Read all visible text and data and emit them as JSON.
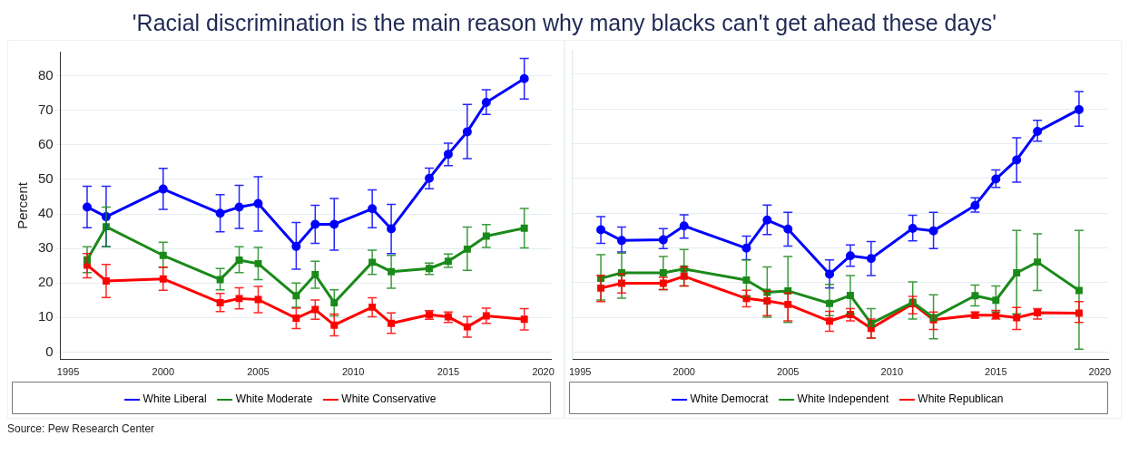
{
  "chart_data": [
    {
      "type": "line",
      "title": "'Racial discrimination is the main reason why many blacks can't get ahead these days'",
      "ylabel": "Percent",
      "xlim": [
        1994.6,
        2020.4
      ],
      "xticks": [
        1995,
        2000,
        2005,
        2010,
        2015,
        2020
      ],
      "ylim": [
        -2.2,
        87
      ],
      "yticks": [
        0,
        10,
        20,
        30,
        40,
        50,
        60,
        70,
        80
      ],
      "grid": "y",
      "legend": "bottom",
      "annotations": [
        "Source: Pew Research Center"
      ],
      "x": [
        1996,
        1997,
        2000,
        2003,
        2004,
        2005,
        2007,
        2008,
        2009,
        2011,
        2012,
        2014,
        2015,
        2016,
        2017,
        2019
      ],
      "series": [
        {
          "name": "White Liberal",
          "color": "#0000ff",
          "marker": "circle",
          "values": [
            42,
            39.2,
            47.2,
            40.2,
            42,
            43,
            30.6,
            37,
            37,
            41.5,
            35.7,
            50.3,
            57.3,
            63.8,
            72.3,
            79.2
          ],
          "errors": [
            [
              36,
              48
            ],
            [
              30.5,
              48
            ],
            [
              41.3,
              53.2
            ],
            [
              34.8,
              45.6
            ],
            [
              35.8,
              48.3
            ],
            [
              35,
              50.8
            ],
            [
              24,
              37.5
            ],
            [
              31.5,
              42.5
            ],
            [
              29.5,
              44.5
            ],
            [
              36,
              47
            ],
            [
              28.5,
              42.8
            ],
            [
              47.3,
              53.3
            ],
            [
              54,
              60.5
            ],
            [
              56,
              71.7
            ],
            [
              68.8,
              76
            ],
            [
              73.3,
              85
            ]
          ]
        },
        {
          "name": "White Moderate",
          "color": "#1a8a1a",
          "marker": "square",
          "values": [
            26.7,
            36.3,
            28,
            21,
            26.6,
            25.6,
            16.3,
            22.4,
            14.3,
            26,
            23.3,
            24.2,
            26.3,
            29.8,
            33.6,
            35.9
          ],
          "errors": [
            [
              23,
              30.5
            ],
            [
              30.5,
              42
            ],
            [
              24.5,
              31.8
            ],
            [
              18,
              24.2
            ],
            [
              23,
              30.5
            ],
            [
              21,
              30.3
            ],
            [
              13,
              20
            ],
            [
              18.5,
              26.3
            ],
            [
              10.5,
              18
            ],
            [
              22.5,
              29.5
            ],
            [
              18.5,
              28
            ],
            [
              22.5,
              25.8
            ],
            [
              24.5,
              28.4
            ],
            [
              23.7,
              36.2
            ],
            [
              30.3,
              36.9
            ],
            [
              30.2,
              41.6
            ]
          ]
        },
        {
          "name": "White Conservative",
          "color": "#ff0000",
          "marker": "square",
          "values": [
            25.2,
            20.6,
            21.2,
            14.3,
            15.5,
            15.2,
            9.8,
            12.3,
            7.8,
            13,
            8.3,
            10.8,
            10.2,
            7.3,
            10.5,
            9.5
          ],
          "errors": [
            [
              21.5,
              28.5
            ],
            [
              15.8,
              25.4
            ],
            [
              17.9,
              24.6
            ],
            [
              11.7,
              17
            ],
            [
              12.5,
              18.6
            ],
            [
              11.4,
              19
            ],
            [
              6.8,
              12.7
            ],
            [
              9.5,
              15.1
            ],
            [
              4.7,
              11
            ],
            [
              10.2,
              15.7
            ],
            [
              5.4,
              11.3
            ],
            [
              9.5,
              12
            ],
            [
              8.6,
              11.6
            ],
            [
              4.3,
              10.3
            ],
            [
              8.3,
              12.7
            ],
            [
              6.4,
              12.6
            ]
          ]
        }
      ]
    },
    {
      "type": "line",
      "xlim": [
        1994.6,
        2020.4
      ],
      "xticks": [
        1995,
        2000,
        2005,
        2010,
        2015,
        2020
      ],
      "ylim": [
        -2.2,
        87
      ],
      "yticks": [
        0,
        10,
        20,
        30,
        40,
        50,
        60,
        70,
        80
      ],
      "grid": "y",
      "legend": "bottom",
      "tick_labels": "x",
      "x": [
        1996,
        1997,
        1999,
        2000,
        2003,
        2004,
        2005,
        2007,
        2008,
        2009,
        2011,
        2012,
        2014,
        2015,
        2016,
        2017,
        2019
      ],
      "series": [
        {
          "name": "White Democrat",
          "color": "#0000ff",
          "marker": "circle",
          "values": [
            35.2,
            32.1,
            32.3,
            36.3,
            29.9,
            38,
            35.4,
            22.4,
            27.7,
            26.9,
            35.6,
            34.9,
            42.2,
            49.8,
            55.3,
            63.5,
            69.8
          ],
          "errors": [
            [
              31.3,
              39
            ],
            [
              28.8,
              36
            ],
            [
              29.8,
              35.5
            ],
            [
              32.8,
              39.5
            ],
            [
              26.6,
              33.4
            ],
            [
              33.8,
              42.3
            ],
            [
              30.5,
              40.2
            ],
            [
              18.4,
              26.5
            ],
            [
              24.7,
              30.8
            ],
            [
              22,
              31.8
            ],
            [
              32,
              39.4
            ],
            [
              29.8,
              40.2
            ],
            [
              40.3,
              44.4
            ],
            [
              47.4,
              52.4
            ],
            [
              48.9,
              61.7
            ],
            [
              60.7,
              66.7
            ],
            [
              65,
              75
            ]
          ]
        },
        {
          "name": "White Independent",
          "color": "#1a8a1a",
          "marker": "square",
          "values": [
            21.2,
            22.8,
            22.8,
            23.9,
            20.7,
            17.2,
            17.6,
            14,
            16.3,
            8.2,
            14.3,
            9.9,
            16.2,
            14.9,
            22.8,
            25.9,
            17.7
          ],
          "errors": [
            [
              15,
              28
            ],
            [
              15.5,
              28.5
            ],
            [
              18,
              27.5
            ],
            [
              19,
              29.5
            ],
            [
              16,
              26.5
            ],
            [
              10,
              24.5
            ],
            [
              8.5,
              27.5
            ],
            [
              10.5,
              19.5
            ],
            [
              11,
              22
            ],
            [
              4,
              12.5
            ],
            [
              9.5,
              20.2
            ],
            [
              3.8,
              16.5
            ],
            [
              13.3,
              19.3
            ],
            [
              11.5,
              19
            ],
            [
              11,
              35
            ],
            [
              17.7,
              34
            ],
            [
              0.8,
              35
            ]
          ]
        },
        {
          "name": "White Republican",
          "color": "#ff0000",
          "marker": "square",
          "values": [
            18.4,
            19.8,
            19.8,
            21.8,
            15.4,
            14.7,
            13.7,
            8.9,
            10.8,
            6.8,
            13.9,
            9.3,
            10.6,
            10.6,
            9.9,
            11.3,
            11.2
          ],
          "errors": [
            [
              14.5,
              22
            ],
            [
              17,
              22.5
            ],
            [
              18,
              21.5
            ],
            [
              19,
              24.5
            ],
            [
              13,
              17.8
            ],
            [
              10.5,
              17.5
            ],
            [
              9,
              17
            ],
            [
              6,
              11.7
            ],
            [
              9,
              12.5
            ],
            [
              4,
              9.5
            ],
            [
              11,
              16
            ],
            [
              6.5,
              11.5
            ],
            [
              9.8,
              11.5
            ],
            [
              9.5,
              12
            ],
            [
              6.5,
              12.8
            ],
            [
              9.5,
              12.5
            ],
            [
              8.5,
              14.5
            ]
          ]
        }
      ]
    }
  ]
}
